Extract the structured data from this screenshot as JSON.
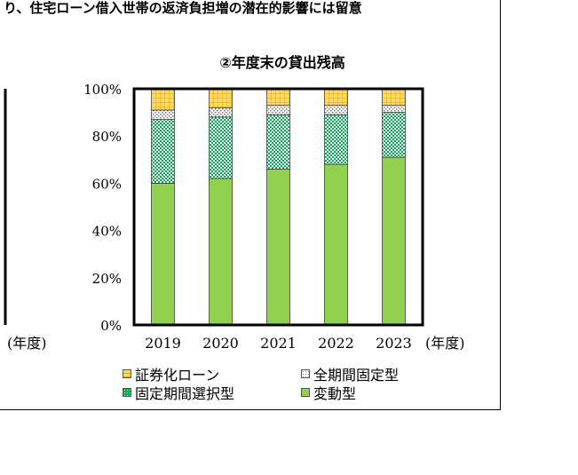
{
  "page": {
    "headline": "り、住宅ローン借入世帯の返済負担増の潜在的影響には留意"
  },
  "chart_data": {
    "type": "bar",
    "stacked": true,
    "title": "②年度末の貸出残高",
    "categories": [
      "2019",
      "2020",
      "2021",
      "2022",
      "2023"
    ],
    "x_unit_label": "(年度)",
    "left_panel_x_unit_label": "(年度)",
    "ylim": [
      0,
      100
    ],
    "yticks": [
      "0%",
      "20%",
      "40%",
      "60%",
      "80%",
      "100%"
    ],
    "grid": false,
    "series": [
      {
        "name": "変動型",
        "values": [
          60,
          62,
          66,
          68,
          71
        ],
        "color": "#92d050",
        "pattern": "solid"
      },
      {
        "name": "固定期間選択型",
        "values": [
          27,
          26,
          23,
          21,
          19
        ],
        "color": "#00b050",
        "pattern": "dots"
      },
      {
        "name": "全期間固定型",
        "values": [
          4,
          4,
          4,
          4,
          3
        ],
        "color": "#ffffff",
        "pattern": "dots"
      },
      {
        "name": "証券化ローン",
        "values": [
          9,
          8,
          7,
          7,
          7
        ],
        "color": "#ffd966",
        "pattern": "grid"
      }
    ],
    "legend": [
      {
        "label": "証券化ローン",
        "series": 3
      },
      {
        "label": "全期間固定型",
        "series": 2
      },
      {
        "label": "固定期間選択型",
        "series": 1
      },
      {
        "label": "変動型",
        "series": 0
      }
    ]
  }
}
